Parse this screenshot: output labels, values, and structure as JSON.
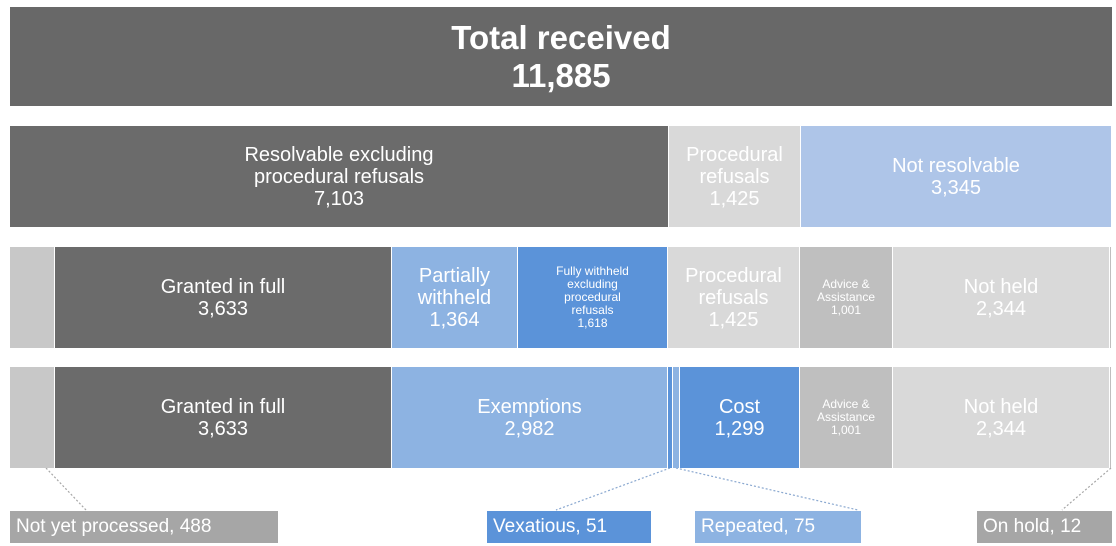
{
  "total": {
    "title": "Total received",
    "value": "11,885"
  },
  "rows": [
    {
      "segments": [
        {
          "lines": [
            "Resolvable excluding",
            "procedural refusals",
            "7,103"
          ],
          "color": "#6b6b6b"
        },
        {
          "lines": [
            "Procedural",
            "refusals",
            "1,425"
          ],
          "color": "#d9d9d9"
        },
        {
          "lines": [
            "Not resolvable",
            "3,345"
          ],
          "color": "#aec5e8"
        }
      ]
    },
    {
      "segments": [
        {
          "lines": [
            "Granted in full",
            "3,633"
          ],
          "color": "#6b6b6b"
        },
        {
          "lines": [
            "Partially",
            "withheld",
            "1,364"
          ],
          "color": "#8db3e2"
        },
        {
          "lines": [
            "Fully withheld",
            "excluding",
            "procedural",
            "refusals",
            "1,618"
          ],
          "color": "#5b93d9"
        },
        {
          "lines": [
            "Procedural",
            "refusals",
            "1,425"
          ],
          "color": "#d9d9d9"
        },
        {
          "lines": [
            "Advice &",
            "Assistance",
            "1,001"
          ],
          "color": "#bfbfbf"
        },
        {
          "lines": [
            "Not held",
            "2,344"
          ],
          "color": "#d9d9d9"
        }
      ]
    },
    {
      "segments": [
        {
          "lines": [
            "Granted in full",
            "3,633"
          ],
          "color": "#6b6b6b"
        },
        {
          "lines": [
            "Exemptions",
            "2,982"
          ],
          "color": "#8db3e2"
        },
        {
          "lines": [
            "Cost",
            "1,299"
          ],
          "color": "#5b93d9"
        },
        {
          "lines": [
            "Advice &",
            "Assistance",
            "1,001"
          ],
          "color": "#bfbfbf"
        },
        {
          "lines": [
            "Not held",
            "2,344"
          ],
          "color": "#d9d9d9"
        }
      ]
    }
  ],
  "notes": [
    {
      "text": "Not yet processed, 488",
      "color": "#a6a6a6"
    },
    {
      "text": "Vexatious, 51",
      "color": "#5b93d9"
    },
    {
      "text": "Repeated, 75",
      "color": "#8db3e2"
    },
    {
      "text": "On hold, 12",
      "color": "#a6a6a6"
    }
  ]
}
